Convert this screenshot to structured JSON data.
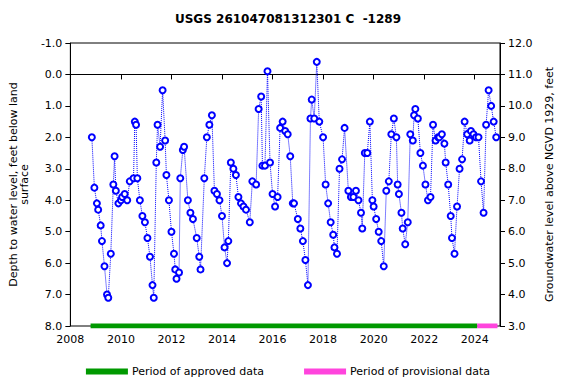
{
  "chart_data": {
    "type": "line",
    "title": "USGS 261047081312301 C  -1289",
    "y_label": "Depth to water level, feet below land\nsurface",
    "y2_label": "Groundwater level above NGVD 1929, feet",
    "xlim": [
      2008,
      2025
    ],
    "xticks": [
      2008,
      2010,
      2012,
      2014,
      2016,
      2018,
      2020,
      2022,
      2024
    ],
    "ylim": [
      -1,
      8
    ],
    "yticks": [
      {
        "value": -1,
        "label": "-1.0"
      },
      {
        "value": 0,
        "label": "0.0"
      },
      {
        "value": 1,
        "label": "1.0"
      },
      {
        "value": 2,
        "label": "2.0"
      },
      {
        "value": 3,
        "label": "3.0"
      },
      {
        "value": 4,
        "label": "4.0"
      },
      {
        "value": 5,
        "label": "5.0"
      },
      {
        "value": 6,
        "label": "6.0"
      },
      {
        "value": 7,
        "label": "7.0"
      },
      {
        "value": 8,
        "label": "8.0"
      }
    ],
    "y2lim": [
      3,
      12
    ],
    "y2ticks": [
      {
        "value": 3,
        "label": "3.0"
      },
      {
        "value": 4,
        "label": "4.0"
      },
      {
        "value": 5,
        "label": "5.0"
      },
      {
        "value": 6,
        "label": "6.0"
      },
      {
        "value": 7,
        "label": "7.0"
      },
      {
        "value": 8,
        "label": "8.0"
      },
      {
        "value": 9,
        "label": "9.0"
      },
      {
        "value": 10,
        "label": "10.0"
      },
      {
        "value": 11,
        "label": "11.0"
      },
      {
        "value": 12,
        "label": "12.0"
      }
    ],
    "grid": false,
    "legend": "bottom",
    "series": [
      {
        "color": "#0000ff",
        "marker": "circle",
        "line_style": "dotted",
        "x": [
          2008.85,
          2008.95,
          2009.05,
          2009.1,
          2009.2,
          2009.25,
          2009.35,
          2009.45,
          2009.5,
          2009.6,
          2009.7,
          2009.75,
          2009.8,
          2009.9,
          2010.0,
          2010.05,
          2010.15,
          2010.25,
          2010.35,
          2010.5,
          2010.55,
          2010.6,
          2010.65,
          2010.75,
          2010.85,
          2010.95,
          2011.05,
          2011.15,
          2011.25,
          2011.3,
          2011.4,
          2011.45,
          2011.55,
          2011.65,
          2011.75,
          2011.8,
          2011.9,
          2012.0,
          2012.1,
          2012.15,
          2012.2,
          2012.3,
          2012.35,
          2012.45,
          2012.5,
          2012.65,
          2012.75,
          2012.85,
          2013.0,
          2013.1,
          2013.15,
          2013.3,
          2013.4,
          2013.5,
          2013.6,
          2013.7,
          2013.8,
          2013.9,
          2014.0,
          2014.1,
          2014.2,
          2014.25,
          2014.35,
          2014.45,
          2014.55,
          2014.65,
          2014.75,
          2014.85,
          2014.95,
          2015.1,
          2015.2,
          2015.35,
          2015.45,
          2015.55,
          2015.6,
          2015.7,
          2015.8,
          2015.9,
          2016.0,
          2016.1,
          2016.2,
          2016.3,
          2016.4,
          2016.5,
          2016.6,
          2016.7,
          2016.8,
          2016.85,
          2017.0,
          2017.1,
          2017.2,
          2017.3,
          2017.4,
          2017.5,
          2017.55,
          2017.65,
          2017.75,
          2017.85,
          2018.0,
          2018.1,
          2018.2,
          2018.3,
          2018.4,
          2018.45,
          2018.55,
          2018.65,
          2018.75,
          2018.85,
          2019.0,
          2019.1,
          2019.2,
          2019.3,
          2019.4,
          2019.5,
          2019.55,
          2019.65,
          2019.75,
          2019.85,
          2019.95,
          2020.0,
          2020.1,
          2020.2,
          2020.3,
          2020.4,
          2020.5,
          2020.6,
          2020.7,
          2020.8,
          2020.9,
          2020.95,
          2021.0,
          2021.1,
          2021.15,
          2021.25,
          2021.35,
          2021.45,
          2021.55,
          2021.6,
          2021.65,
          2021.75,
          2021.85,
          2021.95,
          2022.05,
          2022.15,
          2022.25,
          2022.35,
          2022.45,
          2022.55,
          2022.6,
          2022.7,
          2022.8,
          2022.85,
          2022.95,
          2023.05,
          2023.1,
          2023.2,
          2023.3,
          2023.4,
          2023.5,
          2023.6,
          2023.7,
          2023.8,
          2023.85,
          2023.95,
          2024.05,
          2024.15,
          2024.25,
          2024.35,
          2024.45,
          2024.55,
          2024.65,
          2024.75,
          2024.85
        ],
        "values": [
          2.0,
          3.6,
          4.1,
          4.3,
          4.8,
          5.3,
          6.1,
          7.0,
          7.1,
          5.7,
          3.5,
          2.6,
          3.7,
          4.1,
          4.0,
          3.9,
          3.8,
          4.0,
          3.4,
          3.3,
          1.5,
          1.6,
          3.3,
          4.0,
          4.5,
          4.7,
          5.2,
          5.8,
          6.7,
          7.1,
          2.8,
          1.6,
          2.3,
          0.5,
          2.1,
          3.2,
          4.0,
          5.0,
          5.7,
          6.2,
          6.5,
          6.3,
          3.3,
          2.4,
          2.3,
          4.0,
          4.4,
          4.6,
          5.2,
          5.8,
          6.2,
          3.3,
          2.0,
          1.6,
          1.3,
          3.7,
          3.8,
          4.0,
          4.5,
          5.5,
          6.0,
          5.3,
          2.8,
          3.0,
          3.2,
          3.9,
          4.1,
          4.2,
          4.3,
          4.7,
          3.4,
          3.5,
          1.1,
          0.7,
          2.9,
          2.9,
          -0.1,
          2.8,
          3.8,
          4.2,
          3.9,
          1.7,
          1.5,
          1.8,
          1.9,
          2.6,
          4.1,
          4.1,
          4.6,
          4.9,
          5.3,
          5.9,
          6.7,
          1.4,
          0.8,
          1.4,
          -0.4,
          1.5,
          2.0,
          3.5,
          4.1,
          4.7,
          5.1,
          5.5,
          5.7,
          3.0,
          2.7,
          1.7,
          3.7,
          3.9,
          3.9,
          3.7,
          4.0,
          4.4,
          4.9,
          2.5,
          2.5,
          1.5,
          4.0,
          4.2,
          4.6,
          5.0,
          5.3,
          6.1,
          3.7,
          3.4,
          1.9,
          1.4,
          2.0,
          3.5,
          3.8,
          4.4,
          4.9,
          5.4,
          4.7,
          1.9,
          2.1,
          1.3,
          1.1,
          1.4,
          2.5,
          2.9,
          3.5,
          4.0,
          3.9,
          1.6,
          2.1,
          2.0,
          2.0,
          1.9,
          2.2,
          2.8,
          3.5,
          4.5,
          5.2,
          5.7,
          4.2,
          3.0,
          2.7,
          1.5,
          1.9,
          2.1,
          1.8,
          1.9,
          2.0,
          2.0,
          3.4,
          4.4,
          1.6,
          0.5,
          1.0,
          1.5,
          2.0
        ]
      },
      {
        "name": "Period of approved data",
        "color": "#009900",
        "marker": "none",
        "line_style": "solid",
        "x": [
          2008.8,
          2024.1
        ],
        "values": [
          8,
          8
        ]
      },
      {
        "name": "Period of provisional data",
        "color": "#ff44dd",
        "marker": "none",
        "line_style": "solid",
        "x": [
          2024.1,
          2024.9
        ],
        "values": [
          8,
          8
        ]
      }
    ]
  }
}
